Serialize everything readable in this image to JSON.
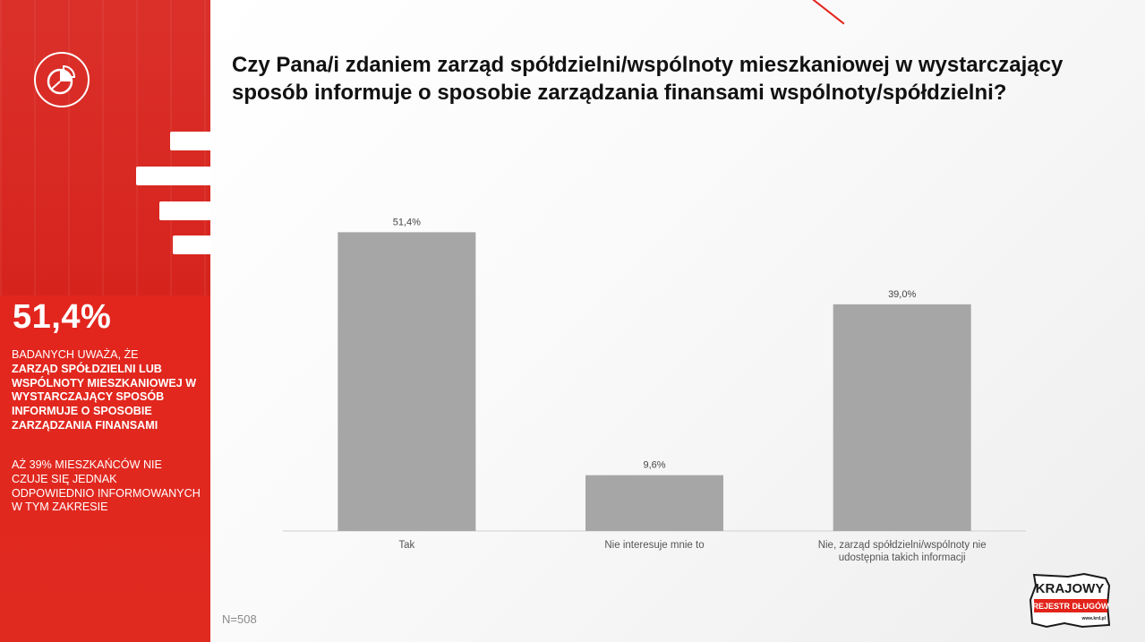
{
  "sidebar": {
    "stat": "51,4%",
    "p1_normal": "BADANYCH UWAŻA, ŻE",
    "p1_bold": "ZARZĄD SPÓŁDZIELNI LUB WSPÓLNOTY MIESZKANIOWEJ W WYSTARCZAJĄCY SPOSÓB INFORMUJE O SPOSOBIE ZARZĄDZANIA FINANSAMI",
    "p2": "AŻ 39% MIESZKAŃCÓW NIE CZUJE SIĘ JEDNAK ODPOWIEDNIO INFORMOWANYCH W TYM ZAKRESIE"
  },
  "header": {
    "title": "Czy Pana/i zdaniem zarząd spółdzielni/wspólnoty mieszkaniowej w wystarczający sposób informuje o sposobie zarządzania finansami wspólnoty/spółdzielni?"
  },
  "footer": {
    "n": "N=508"
  },
  "brand": {
    "line1": "KRAJOWY",
    "line2": "REJESTR DŁUGÓW",
    "url": "www.krd.pl",
    "accent": "#e2231a"
  },
  "colors": {
    "accent": "#e2231a",
    "bar": "#a6a6a6"
  },
  "chart_data": {
    "type": "bar",
    "title": "Czy Pana/i zdaniem zarząd spółdzielni/wspólnoty mieszkaniowej w wystarczający sposób informuje o sposobie zarządzania finansami wspólnoty/spółdzielni?",
    "categories": [
      [
        "Tak"
      ],
      [
        "Nie interesuje mnie to"
      ],
      [
        "Nie, zarząd spółdzielni/wspólnoty nie",
        "udostępnia takich informacji"
      ]
    ],
    "values": [
      51.4,
      9.6,
      39.0
    ],
    "data_labels": [
      "51,4%",
      "9,6%",
      "39,0%"
    ],
    "ylim": [
      0,
      55
    ],
    "grid": false,
    "legend": "none"
  }
}
